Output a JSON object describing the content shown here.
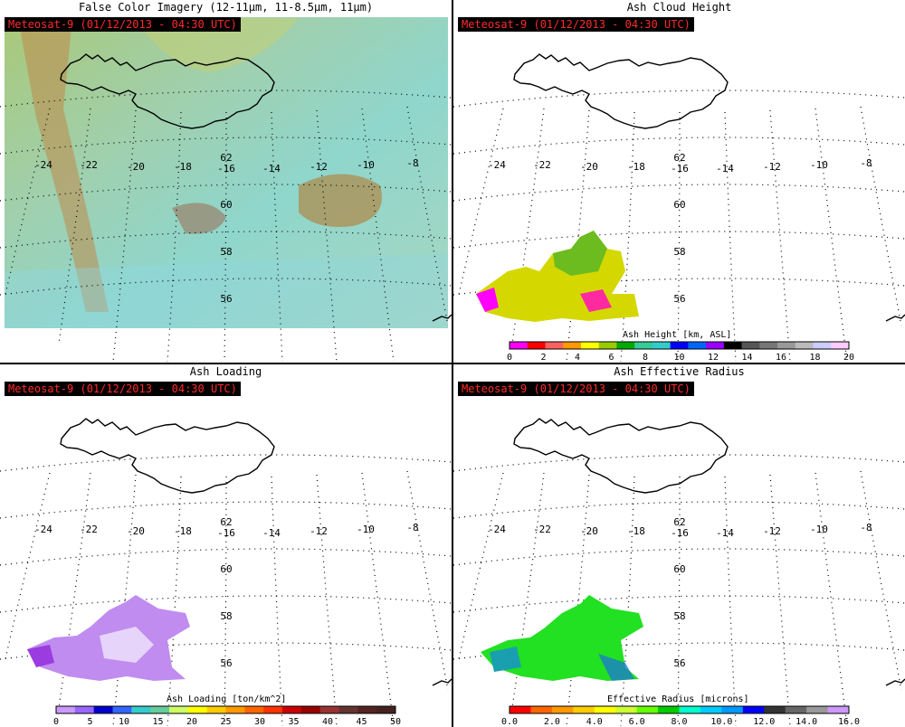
{
  "panels": [
    {
      "title": "False Color Imagery (12-11μm, 11-8.5μm, 11μm)",
      "stamp": "Meteosat-9  (01/12/2013 - 04:30 UTC)"
    },
    {
      "title": "Ash Cloud Height",
      "stamp": "Meteosat-9  (01/12/2013 - 04:30 UTC)",
      "colorbar_label": "Ash Height [km, ASL]",
      "colorbar_ticks": [
        "0",
        "2",
        "4",
        "6",
        "8",
        "10",
        "12",
        "14",
        "16",
        "18",
        "20"
      ],
      "colors": [
        "#ff00ff",
        "#ff0000",
        "#ff6060",
        "#ff9900",
        "#ffff00",
        "#99cc00",
        "#00aa00",
        "#33cc99",
        "#33cccc",
        "#0000ff",
        "#0066ff",
        "#9900ff",
        "#000000",
        "#555555",
        "#777777",
        "#999999",
        "#bbbbbb",
        "#ccccff",
        "#ffccff"
      ]
    },
    {
      "title": "Ash Loading",
      "stamp": "Meteosat-9  (01/12/2013 - 04:30 UTC)",
      "colorbar_label": "Ash Loading [ton/km^2]",
      "colorbar_ticks": [
        "0",
        "5",
        "10",
        "15",
        "20",
        "25",
        "30",
        "35",
        "40",
        "45",
        "50"
      ],
      "colors": [
        "#cc99ff",
        "#9966ff",
        "#0000cc",
        "#3366ff",
        "#33cccc",
        "#66cc99",
        "#ccff66",
        "#ffff00",
        "#ffcc00",
        "#ff9900",
        "#ff6600",
        "#ff3300",
        "#cc0000",
        "#990000",
        "#993333",
        "#663333",
        "#552222",
        "#442222"
      ]
    },
    {
      "title": "Ash Effective Radius",
      "stamp": "Meteosat-9  (01/12/2013 - 04:30 UTC)",
      "colorbar_label": "Effective Radius [microns]",
      "colorbar_ticks": [
        "0.0",
        "2.0",
        "4.0",
        "6.0",
        "8.0",
        "10.0",
        "12.0",
        "14.0",
        "16.0"
      ],
      "colors": [
        "#ff0000",
        "#ff6600",
        "#ff9900",
        "#ffcc00",
        "#ffff00",
        "#ccff33",
        "#66ff00",
        "#00cc00",
        "#00ffcc",
        "#00ccff",
        "#0099ff",
        "#0000ff",
        "#333333",
        "#666666",
        "#999999",
        "#cc99ff"
      ]
    }
  ],
  "map": {
    "lon_labels": [
      "-24",
      "-22",
      "-20",
      "-18",
      "-16",
      "-14",
      "-12",
      "-10",
      "-8"
    ],
    "lat_labels": [
      "62",
      "60",
      "58",
      "56"
    ]
  }
}
